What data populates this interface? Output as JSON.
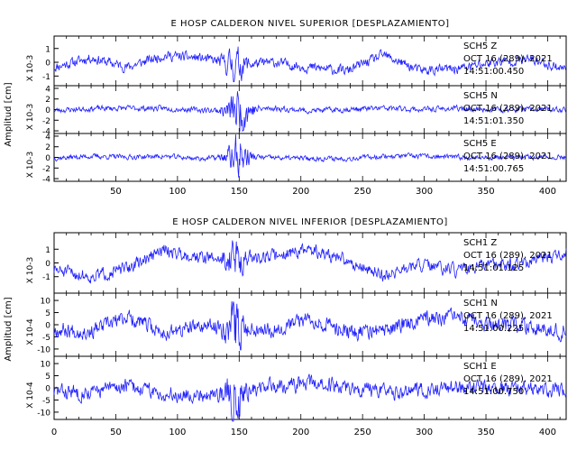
{
  "chart_data": [
    {
      "type": "line",
      "title": "E HOSP CALDERON NIVEL SUPERIOR [DESPLAZAMIENTO]",
      "ylabel": "Amplitud [cm]",
      "xlim": [
        0,
        415
      ],
      "x_ticks": [
        "50",
        "100",
        "150",
        "200",
        "250",
        "300",
        "350",
        "400"
      ],
      "line_color": "#2020ff",
      "series": [
        {
          "name": "SCH5 Z",
          "station": "SCH5   Z",
          "date": "OCT 16 (289), 2021",
          "time": "14:51:00.450",
          "scale_label": "X 10-3",
          "ylim": [
            -1.7,
            1.9
          ],
          "y_ticks": [
            "1",
            "0",
            "-1"
          ],
          "pattern": {
            "base": 0.35,
            "burst_center": 147,
            "burst_width": 6,
            "burst_amp": 0.9,
            "low_freq": 0.7,
            "low_seed": 5,
            "seed": 11
          }
        },
        {
          "name": "SCH5 N",
          "station": "SCH5   N",
          "date": "OCT 16 (289), 2021",
          "time": "14:51:01.350",
          "scale_label": "X 10-3",
          "ylim": [
            -4.5,
            4.5
          ],
          "y_ticks": [
            "4",
            "2",
            "0",
            "-2",
            "-4"
          ],
          "pattern": {
            "base": 0.5,
            "burst_center": 150,
            "burst_width": 7,
            "burst_amp": 3.6,
            "low_freq": 0.3,
            "low_seed": 6,
            "seed": 23
          }
        },
        {
          "name": "SCH5 E",
          "station": "SCH5   E",
          "date": "OCT 16 (289), 2021",
          "time": "14:51:00.765",
          "scale_label": "X 10-3",
          "ylim": [
            -4.5,
            4.5
          ],
          "y_ticks": [
            "4",
            "2",
            "0",
            "-2",
            "-4"
          ],
          "pattern": {
            "base": 0.45,
            "burst_center": 149,
            "burst_width": 6,
            "burst_amp": 3.4,
            "low_freq": 0.25,
            "low_seed": 7,
            "seed": 37
          }
        }
      ]
    },
    {
      "type": "line",
      "title": "E HOSP CALDERON NIVEL INFERIOR [DESPLAZAMIENTO]",
      "ylabel": "Amplitud [cm]",
      "xlim": [
        0,
        415
      ],
      "x_ticks": [
        "0",
        "50",
        "100",
        "150",
        "200",
        "250",
        "300",
        "350",
        "400"
      ],
      "line_color": "#2020ff",
      "series": [
        {
          "name": "SCH1 Z",
          "station": "SCH1   Z",
          "date": "OCT 16 (289), 2021",
          "time": "14:51:01.125",
          "scale_label": "X 10-3",
          "ylim": [
            -2.2,
            2.2
          ],
          "y_ticks": [
            "1",
            "0",
            "-1"
          ],
          "pattern": {
            "base": 0.45,
            "burst_center": 146,
            "burst_width": 5,
            "burst_amp": 1.2,
            "low_freq": 1.0,
            "low_seed": 8,
            "seed": 51
          }
        },
        {
          "name": "SCH1 N",
          "station": "SCH1   N",
          "date": "OCT 16 (289), 2021",
          "time": "14:51:00.225",
          "scale_label": "X 10-4",
          "ylim": [
            -13,
            13
          ],
          "y_ticks": [
            "10",
            "5",
            "0",
            "-5",
            "-10"
          ],
          "pattern": {
            "base": 3.0,
            "burst_center": 146,
            "burst_width": 5,
            "burst_amp": 8.0,
            "low_freq": 3.5,
            "low_seed": 9,
            "seed": 67
          }
        },
        {
          "name": "SCH1 E",
          "station": "SCH1   E",
          "date": "OCT 16 (289), 2021",
          "time": "14:51:00.750",
          "scale_label": "X 10-4",
          "ylim": [
            -13,
            13
          ],
          "y_ticks": [
            "10",
            "5",
            "0",
            "-5",
            "-10"
          ],
          "pattern": {
            "base": 3.0,
            "burst_center": 146,
            "burst_width": 5,
            "burst_amp": 7.5,
            "low_freq": 3.0,
            "low_seed": 10,
            "seed": 83
          }
        }
      ]
    }
  ]
}
